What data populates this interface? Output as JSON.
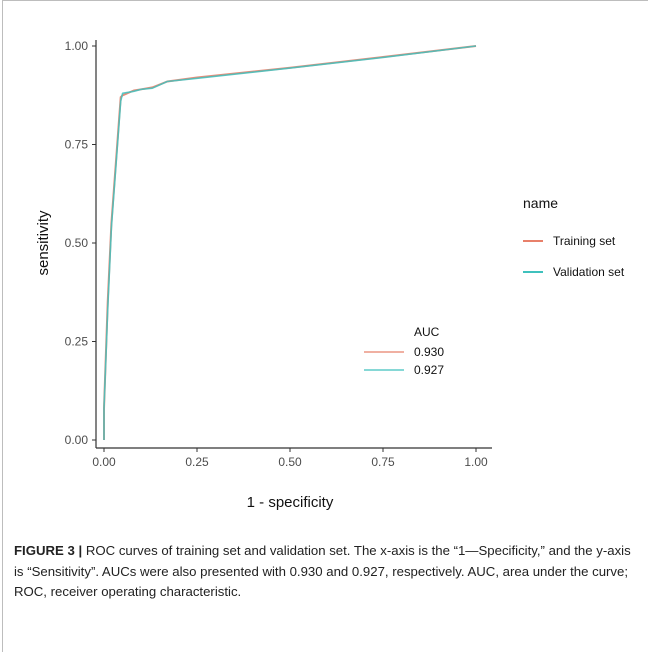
{
  "chart_data": {
    "type": "line",
    "xlabel": "1 - specificity",
    "ylabel": "sensitivity",
    "xlim": [
      0,
      1
    ],
    "ylim": [
      0,
      1
    ],
    "x_ticks": [
      "0.00",
      "0.25",
      "0.50",
      "0.75",
      "1.00"
    ],
    "y_ticks": [
      "0.00",
      "0.25",
      "0.50",
      "0.75",
      "1.00"
    ],
    "grid": false,
    "legend": {
      "title": "name",
      "placement": "right",
      "entries": [
        "Training set",
        "Validation set"
      ]
    },
    "auc_annotation": {
      "title": "AUC",
      "entries": [
        "0.930",
        "0.927"
      ]
    },
    "series": [
      {
        "name": "Training set",
        "color": "#e8806a",
        "x": [
          0.0,
          0.0,
          0.01,
          0.02,
          0.045,
          0.05,
          0.08,
          0.1,
          0.13,
          0.17,
          0.25,
          0.5,
          0.75,
          1.0
        ],
        "y": [
          0.0,
          0.08,
          0.35,
          0.55,
          0.87,
          0.875,
          0.887,
          0.89,
          0.895,
          0.91,
          0.92,
          0.945,
          0.972,
          1.0
        ]
      },
      {
        "name": "Validation set",
        "color": "#3fc1bd",
        "x": [
          0.0,
          0.0,
          0.01,
          0.02,
          0.045,
          0.05,
          0.08,
          0.1,
          0.13,
          0.17,
          0.25,
          0.5,
          0.75,
          1.0
        ],
        "y": [
          0.0,
          0.08,
          0.33,
          0.54,
          0.86,
          0.88,
          0.885,
          0.89,
          0.893,
          0.91,
          0.918,
          0.944,
          0.971,
          1.0
        ]
      }
    ]
  },
  "caption": {
    "label": "FIGURE 3 |",
    "text": "ROC curves of training set and validation set. The x-axis is the “1—Specificity,” and the y-axis is “Sensitivity”. AUCs were also presented with 0.930 and 0.927, respectively. AUC, area under the curve; ROC, receiver operating characteristic."
  }
}
